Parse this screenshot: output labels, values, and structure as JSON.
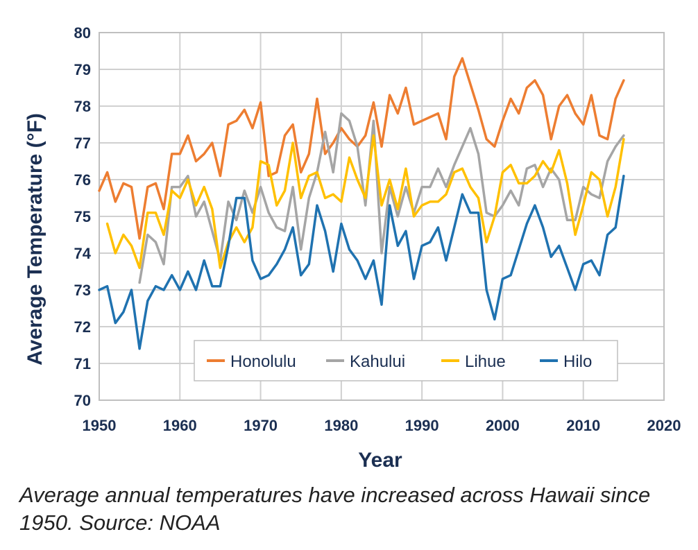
{
  "chart_data": {
    "type": "line",
    "title": "",
    "xlabel": "Year",
    "ylabel": "Average Temperature (°F)",
    "xlim": [
      1950,
      2020
    ],
    "ylim": [
      70,
      80
    ],
    "xticks": [
      "1950",
      "1960",
      "1970",
      "1980",
      "1990",
      "2000",
      "2010",
      "2020"
    ],
    "yticks": [
      "70",
      "71",
      "72",
      "73",
      "74",
      "75",
      "76",
      "77",
      "78",
      "79",
      "80"
    ],
    "grid": true,
    "legend_position": "bottom-right",
    "series": [
      {
        "name": "Honolulu",
        "color": "#ed7d31",
        "x": [
          1950,
          1951,
          1952,
          1953,
          1954,
          1955,
          1956,
          1957,
          1958,
          1959,
          1960,
          1961,
          1962,
          1963,
          1964,
          1965,
          1966,
          1967,
          1968,
          1969,
          1970,
          1971,
          1972,
          1973,
          1974,
          1975,
          1976,
          1977,
          1978,
          1979,
          1980,
          1981,
          1982,
          1983,
          1984,
          1985,
          1986,
          1987,
          1988,
          1989,
          1990,
          1991,
          1992,
          1993,
          1994,
          1995,
          1996,
          1997,
          1998,
          1999,
          2000,
          2001,
          2002,
          2003,
          2004,
          2005,
          2006,
          2007,
          2008,
          2009,
          2010,
          2011,
          2012,
          2013,
          2014,
          2015
        ],
        "values": [
          75.7,
          76.2,
          75.4,
          75.9,
          75.8,
          74.4,
          75.8,
          75.9,
          75.2,
          76.7,
          76.7,
          77.2,
          76.5,
          76.7,
          77.0,
          76.1,
          77.5,
          77.6,
          77.9,
          77.4,
          78.1,
          76.1,
          76.2,
          77.2,
          77.5,
          76.2,
          76.7,
          78.2,
          76.7,
          77.0,
          77.4,
          77.1,
          76.9,
          77.2,
          78.1,
          76.9,
          78.3,
          77.8,
          78.5,
          77.5,
          77.6,
          77.7,
          77.8,
          77.1,
          78.8,
          79.3,
          78.6,
          77.9,
          77.1,
          76.9,
          77.6,
          78.2,
          77.8,
          78.5,
          78.7,
          78.3,
          77.1,
          78.0,
          78.3,
          77.8,
          77.5,
          78.3,
          77.2,
          77.1,
          78.2,
          78.7
        ]
      },
      {
        "name": "Kahului",
        "color": "#a5a5a5",
        "x": [
          1955,
          1956,
          1957,
          1958,
          1959,
          1960,
          1961,
          1962,
          1963,
          1964,
          1965,
          1966,
          1967,
          1968,
          1969,
          1970,
          1971,
          1972,
          1973,
          1974,
          1975,
          1976,
          1977,
          1978,
          1979,
          1980,
          1981,
          1982,
          1983,
          1984,
          1985,
          1986,
          1987,
          1988,
          1989,
          1990,
          1991,
          1992,
          1993,
          1994,
          1995,
          1996,
          1997,
          1998,
          1999,
          2000,
          2001,
          2002,
          2003,
          2004,
          2005,
          2006,
          2007,
          2008,
          2009,
          2010,
          2011,
          2012,
          2013,
          2014,
          2015
        ],
        "values": [
          73.2,
          74.5,
          74.3,
          73.7,
          75.8,
          75.8,
          76.1,
          75.0,
          75.4,
          74.6,
          73.8,
          75.4,
          74.9,
          75.7,
          75.1,
          75.8,
          75.1,
          74.7,
          74.6,
          75.8,
          74.1,
          75.5,
          76.2,
          77.3,
          76.2,
          77.8,
          77.6,
          76.9,
          75.3,
          77.6,
          74.0,
          75.8,
          75.0,
          75.8,
          75.1,
          75.8,
          75.8,
          76.3,
          75.8,
          76.4,
          76.9,
          77.4,
          76.7,
          75.1,
          75.0,
          75.3,
          75.7,
          75.3,
          76.3,
          76.4,
          75.8,
          76.3,
          76.0,
          74.9,
          74.9,
          75.8,
          75.6,
          75.5,
          76.5,
          76.9,
          77.2
        ]
      },
      {
        "name": "Lihue",
        "color": "#ffc000",
        "x": [
          1951,
          1952,
          1953,
          1954,
          1955,
          1956,
          1957,
          1958,
          1959,
          1960,
          1961,
          1962,
          1963,
          1964,
          1965,
          1966,
          1967,
          1968,
          1969,
          1970,
          1971,
          1972,
          1973,
          1974,
          1975,
          1976,
          1977,
          1978,
          1979,
          1980,
          1981,
          1982,
          1983,
          1984,
          1985,
          1986,
          1987,
          1988,
          1989,
          1990,
          1991,
          1992,
          1993,
          1994,
          1995,
          1996,
          1997,
          1998,
          1999,
          2000,
          2001,
          2002,
          2003,
          2004,
          2005,
          2006,
          2007,
          2008,
          2009,
          2010,
          2011,
          2012,
          2013,
          2014,
          2015
        ],
        "values": [
          74.8,
          74.0,
          74.5,
          74.2,
          73.6,
          75.1,
          75.1,
          74.5,
          75.7,
          75.5,
          76.0,
          75.3,
          75.8,
          75.2,
          73.6,
          74.3,
          74.7,
          74.3,
          74.7,
          76.5,
          76.4,
          75.3,
          75.7,
          77.0,
          75.5,
          76.1,
          76.2,
          75.5,
          75.6,
          75.4,
          76.6,
          76.0,
          75.5,
          77.2,
          75.3,
          76.0,
          75.2,
          76.3,
          75.0,
          75.3,
          75.4,
          75.4,
          75.6,
          76.2,
          76.3,
          75.8,
          75.5,
          74.3,
          75.0,
          76.2,
          76.4,
          75.9,
          75.9,
          76.1,
          76.5,
          76.2,
          76.8,
          75.9,
          74.5,
          75.3,
          76.2,
          76.0,
          75.0,
          75.8,
          77.1
        ]
      },
      {
        "name": "Hilo",
        "color": "#1f72b0",
        "x": [
          1950,
          1951,
          1952,
          1953,
          1954,
          1955,
          1956,
          1957,
          1958,
          1959,
          1960,
          1961,
          1962,
          1963,
          1964,
          1965,
          1966,
          1967,
          1968,
          1969,
          1970,
          1971,
          1972,
          1973,
          1974,
          1975,
          1976,
          1977,
          1978,
          1979,
          1980,
          1981,
          1982,
          1983,
          1984,
          1985,
          1986,
          1987,
          1988,
          1989,
          1990,
          1991,
          1992,
          1993,
          1994,
          1995,
          1996,
          1997,
          1998,
          1999,
          2000,
          2001,
          2002,
          2003,
          2004,
          2005,
          2006,
          2007,
          2008,
          2009,
          2010,
          2011,
          2012,
          2013,
          2014,
          2015
        ],
        "values": [
          73.0,
          73.1,
          72.1,
          72.4,
          73.0,
          71.4,
          72.7,
          73.1,
          73.0,
          73.4,
          73.0,
          73.5,
          73.0,
          73.8,
          73.1,
          73.1,
          74.2,
          75.5,
          75.5,
          73.8,
          73.3,
          73.4,
          73.7,
          74.1,
          74.7,
          73.4,
          73.7,
          75.3,
          74.6,
          73.5,
          74.8,
          74.1,
          73.8,
          73.3,
          73.8,
          72.6,
          75.3,
          74.2,
          74.6,
          73.3,
          74.2,
          74.3,
          74.7,
          73.8,
          74.7,
          75.6,
          75.1,
          75.1,
          73.0,
          72.2,
          73.3,
          73.4,
          74.1,
          74.8,
          75.3,
          74.7,
          73.9,
          74.2,
          73.6,
          73.0,
          73.7,
          73.8,
          73.4,
          74.5,
          74.7,
          76.1
        ]
      }
    ]
  },
  "caption": "Average annual temperatures have increased across Hawaii since 1950. Source: NOAA"
}
